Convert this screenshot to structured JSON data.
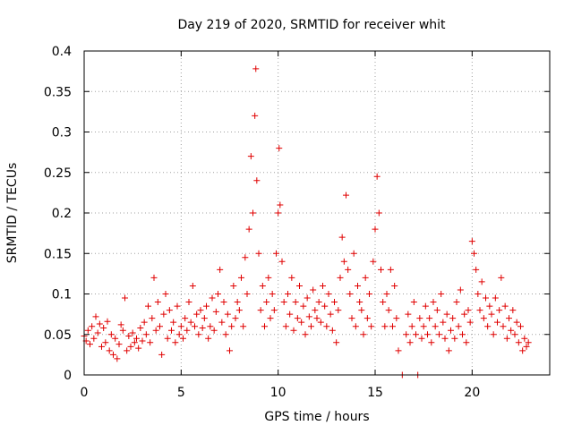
{
  "chart_data": {
    "type": "scatter",
    "title": "Day 219 of 2020, SRMTID for receiver whit",
    "xlabel": "GPS time / hours",
    "ylabel": "SRMTID / TECUs",
    "xlim": [
      0,
      24
    ],
    "ylim": [
      0,
      0.4
    ],
    "grid": true,
    "marker": "+",
    "x_ticks": [
      0,
      5,
      10,
      15,
      20
    ],
    "x_tick_labels": [
      "0",
      "5",
      "10",
      "15",
      "20"
    ],
    "y_ticks": [
      0,
      0.05,
      0.1,
      0.15,
      0.2,
      0.25,
      0.3,
      0.35,
      0.4
    ],
    "y_tick_labels": [
      "0",
      "0.05",
      "0.1",
      "0.15",
      "0.2",
      "0.25",
      "0.3",
      "0.35",
      "0.4"
    ],
    "series": [
      {
        "name": "SRMTID",
        "color": "#e00000",
        "points": [
          [
            0.0,
            0.048
          ],
          [
            0.1,
            0.042
          ],
          [
            0.2,
            0.055
          ],
          [
            0.3,
            0.038
          ],
          [
            0.4,
            0.06
          ],
          [
            0.5,
            0.045
          ],
          [
            0.6,
            0.072
          ],
          [
            0.7,
            0.052
          ],
          [
            0.8,
            0.063
          ],
          [
            0.9,
            0.035
          ],
          [
            1.0,
            0.058
          ],
          [
            1.1,
            0.04
          ],
          [
            1.2,
            0.066
          ],
          [
            1.3,
            0.03
          ],
          [
            1.4,
            0.05
          ],
          [
            1.5,
            0.025
          ],
          [
            1.6,
            0.045
          ],
          [
            1.7,
            0.02
          ],
          [
            1.8,
            0.038
          ],
          [
            1.9,
            0.062
          ],
          [
            2.0,
            0.055
          ],
          [
            2.1,
            0.095
          ],
          [
            2.2,
            0.03
          ],
          [
            2.3,
            0.048
          ],
          [
            2.4,
            0.035
          ],
          [
            2.5,
            0.052
          ],
          [
            2.6,
            0.04
          ],
          [
            2.7,
            0.045
          ],
          [
            2.8,
            0.033
          ],
          [
            2.9,
            0.058
          ],
          [
            3.0,
            0.042
          ],
          [
            3.1,
            0.065
          ],
          [
            3.2,
            0.05
          ],
          [
            3.3,
            0.085
          ],
          [
            3.4,
            0.04
          ],
          [
            3.5,
            0.07
          ],
          [
            3.6,
            0.12
          ],
          [
            3.7,
            0.055
          ],
          [
            3.8,
            0.09
          ],
          [
            3.9,
            0.06
          ],
          [
            4.0,
            0.025
          ],
          [
            4.1,
            0.075
          ],
          [
            4.2,
            0.1
          ],
          [
            4.3,
            0.045
          ],
          [
            4.4,
            0.08
          ],
          [
            4.5,
            0.055
          ],
          [
            4.6,
            0.065
          ],
          [
            4.7,
            0.04
          ],
          [
            4.8,
            0.085
          ],
          [
            4.9,
            0.05
          ],
          [
            5.0,
            0.06
          ],
          [
            5.1,
            0.045
          ],
          [
            5.2,
            0.07
          ],
          [
            5.3,
            0.055
          ],
          [
            5.4,
            0.09
          ],
          [
            5.5,
            0.065
          ],
          [
            5.6,
            0.11
          ],
          [
            5.7,
            0.06
          ],
          [
            5.8,
            0.075
          ],
          [
            5.9,
            0.05
          ],
          [
            6.0,
            0.08
          ],
          [
            6.1,
            0.058
          ],
          [
            6.2,
            0.07
          ],
          [
            6.3,
            0.085
          ],
          [
            6.4,
            0.045
          ],
          [
            6.5,
            0.06
          ],
          [
            6.6,
            0.095
          ],
          [
            6.7,
            0.055
          ],
          [
            6.8,
            0.078
          ],
          [
            6.9,
            0.1
          ],
          [
            7.0,
            0.13
          ],
          [
            7.1,
            0.065
          ],
          [
            7.2,
            0.09
          ],
          [
            7.3,
            0.05
          ],
          [
            7.4,
            0.075
          ],
          [
            7.5,
            0.03
          ],
          [
            7.6,
            0.06
          ],
          [
            7.7,
            0.11
          ],
          [
            7.8,
            0.07
          ],
          [
            7.9,
            0.09
          ],
          [
            8.0,
            0.08
          ],
          [
            8.1,
            0.12
          ],
          [
            8.2,
            0.06
          ],
          [
            8.3,
            0.145
          ],
          [
            8.4,
            0.1
          ],
          [
            8.5,
            0.18
          ],
          [
            8.6,
            0.27
          ],
          [
            8.7,
            0.2
          ],
          [
            8.8,
            0.32
          ],
          [
            8.85,
            0.378
          ],
          [
            8.9,
            0.24
          ],
          [
            9.0,
            0.15
          ],
          [
            9.1,
            0.08
          ],
          [
            9.2,
            0.11
          ],
          [
            9.3,
            0.06
          ],
          [
            9.4,
            0.09
          ],
          [
            9.5,
            0.12
          ],
          [
            9.6,
            0.07
          ],
          [
            9.7,
            0.1
          ],
          [
            9.8,
            0.08
          ],
          [
            9.9,
            0.15
          ],
          [
            10.0,
            0.2
          ],
          [
            10.05,
            0.28
          ],
          [
            10.1,
            0.21
          ],
          [
            10.2,
            0.14
          ],
          [
            10.3,
            0.09
          ],
          [
            10.4,
            0.06
          ],
          [
            10.5,
            0.1
          ],
          [
            10.6,
            0.075
          ],
          [
            10.7,
            0.12
          ],
          [
            10.8,
            0.055
          ],
          [
            10.9,
            0.09
          ],
          [
            11.0,
            0.07
          ],
          [
            11.1,
            0.11
          ],
          [
            11.2,
            0.065
          ],
          [
            11.3,
            0.085
          ],
          [
            11.4,
            0.05
          ],
          [
            11.5,
            0.095
          ],
          [
            11.6,
            0.072
          ],
          [
            11.7,
            0.06
          ],
          [
            11.8,
            0.105
          ],
          [
            11.9,
            0.08
          ],
          [
            12.0,
            0.07
          ],
          [
            12.1,
            0.09
          ],
          [
            12.2,
            0.065
          ],
          [
            12.3,
            0.11
          ],
          [
            12.4,
            0.085
          ],
          [
            12.5,
            0.06
          ],
          [
            12.6,
            0.1
          ],
          [
            12.7,
            0.075
          ],
          [
            12.8,
            0.055
          ],
          [
            12.9,
            0.09
          ],
          [
            13.0,
            0.04
          ],
          [
            13.1,
            0.08
          ],
          [
            13.2,
            0.12
          ],
          [
            13.3,
            0.17
          ],
          [
            13.4,
            0.14
          ],
          [
            13.5,
            0.222
          ],
          [
            13.6,
            0.13
          ],
          [
            13.7,
            0.1
          ],
          [
            13.8,
            0.07
          ],
          [
            13.9,
            0.15
          ],
          [
            14.0,
            0.06
          ],
          [
            14.1,
            0.11
          ],
          [
            14.2,
            0.09
          ],
          [
            14.3,
            0.08
          ],
          [
            14.4,
            0.05
          ],
          [
            14.5,
            0.12
          ],
          [
            14.6,
            0.07
          ],
          [
            14.7,
            0.1
          ],
          [
            14.8,
            0.06
          ],
          [
            14.9,
            0.14
          ],
          [
            15.0,
            0.18
          ],
          [
            15.1,
            0.245
          ],
          [
            15.2,
            0.2
          ],
          [
            15.3,
            0.13
          ],
          [
            15.4,
            0.09
          ],
          [
            15.5,
            0.06
          ],
          [
            15.6,
            0.1
          ],
          [
            15.7,
            0.08
          ],
          [
            15.8,
            0.13
          ],
          [
            15.9,
            0.06
          ],
          [
            16.0,
            0.11
          ],
          [
            16.1,
            0.07
          ],
          [
            16.2,
            0.03
          ],
          [
            16.4,
            0.0
          ],
          [
            16.6,
            0.05
          ],
          [
            16.7,
            0.075
          ],
          [
            16.8,
            0.04
          ],
          [
            16.9,
            0.06
          ],
          [
            17.0,
            0.09
          ],
          [
            17.1,
            0.05
          ],
          [
            17.2,
            0.0
          ],
          [
            17.3,
            0.07
          ],
          [
            17.4,
            0.045
          ],
          [
            17.5,
            0.06
          ],
          [
            17.6,
            0.085
          ],
          [
            17.7,
            0.05
          ],
          [
            17.8,
            0.07
          ],
          [
            17.9,
            0.04
          ],
          [
            18.0,
            0.09
          ],
          [
            18.1,
            0.06
          ],
          [
            18.2,
            0.08
          ],
          [
            18.3,
            0.05
          ],
          [
            18.4,
            0.1
          ],
          [
            18.5,
            0.065
          ],
          [
            18.6,
            0.045
          ],
          [
            18.7,
            0.075
          ],
          [
            18.8,
            0.03
          ],
          [
            18.9,
            0.055
          ],
          [
            19.0,
            0.07
          ],
          [
            19.1,
            0.045
          ],
          [
            19.2,
            0.09
          ],
          [
            19.3,
            0.06
          ],
          [
            19.4,
            0.105
          ],
          [
            19.5,
            0.05
          ],
          [
            19.6,
            0.075
          ],
          [
            19.7,
            0.04
          ],
          [
            19.8,
            0.08
          ],
          [
            19.9,
            0.065
          ],
          [
            20.0,
            0.165
          ],
          [
            20.1,
            0.15
          ],
          [
            20.2,
            0.13
          ],
          [
            20.3,
            0.1
          ],
          [
            20.4,
            0.08
          ],
          [
            20.5,
            0.115
          ],
          [
            20.6,
            0.07
          ],
          [
            20.7,
            0.095
          ],
          [
            20.8,
            0.06
          ],
          [
            20.9,
            0.085
          ],
          [
            21.0,
            0.075
          ],
          [
            21.1,
            0.05
          ],
          [
            21.2,
            0.095
          ],
          [
            21.3,
            0.065
          ],
          [
            21.4,
            0.08
          ],
          [
            21.5,
            0.12
          ],
          [
            21.6,
            0.06
          ],
          [
            21.7,
            0.085
          ],
          [
            21.8,
            0.045
          ],
          [
            21.9,
            0.07
          ],
          [
            22.0,
            0.055
          ],
          [
            22.1,
            0.08
          ],
          [
            22.2,
            0.05
          ],
          [
            22.3,
            0.065
          ],
          [
            22.4,
            0.04
          ],
          [
            22.5,
            0.06
          ],
          [
            22.6,
            0.03
          ],
          [
            22.7,
            0.045
          ],
          [
            22.8,
            0.035
          ],
          [
            22.9,
            0.04
          ]
        ]
      }
    ]
  }
}
